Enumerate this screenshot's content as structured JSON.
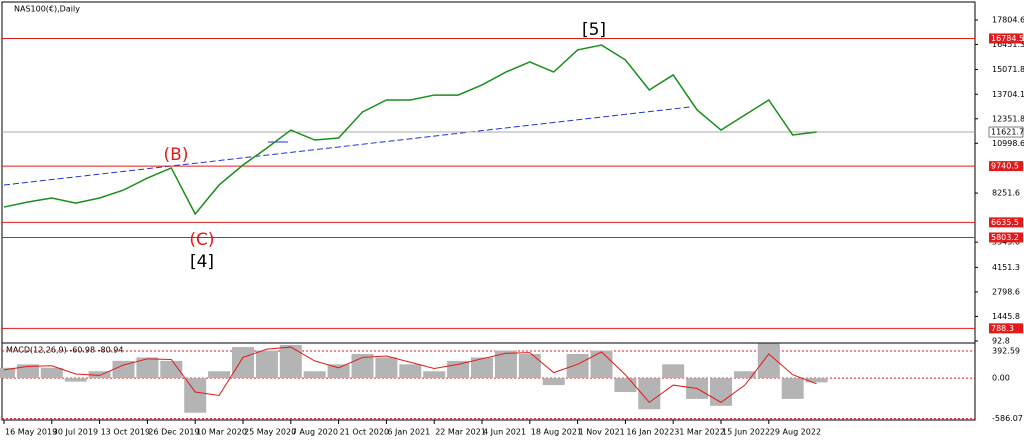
{
  "chart_data": {
    "type": "line",
    "title": "NAS100(€),Daily",
    "categories": [
      "16 May 2019",
      null,
      "30 Jul 2019",
      null,
      "13 Oct 2019",
      null,
      "26 Dec 2019",
      null,
      "10 Mar 2020",
      null,
      "25 May 2020",
      null,
      "7 Aug 2020",
      null,
      "21 Oct 2020",
      null,
      "6 Jan 2021",
      null,
      "22 Mar 2021",
      null,
      "4 Jun 2021",
      null,
      "18 Aug 2021",
      null,
      "1 Nov 2021",
      null,
      "16 Jan 2022",
      null,
      "31 Mar 2022",
      null,
      "15 Jun 2022",
      null,
      "29 Aug 2022",
      null,
      null
    ],
    "values": [
      7480,
      7760,
      7980,
      7700,
      7980,
      8420,
      9080,
      9640,
      7100,
      8700,
      9800,
      10740,
      11730,
      11180,
      11290,
      12730,
      13390,
      13390,
      13660,
      13660,
      14220,
      14930,
      15490,
      14930,
      16150,
      16420,
      15600,
      13940,
      14770,
      12840,
      11730,
      12560,
      13390,
      11460,
      11621.7
    ],
    "color": "#1a8f1a",
    "ylim": [
      -20,
      18630
    ],
    "yticks": [
      17804.6,
      16451.3,
      15071.8,
      13704.1,
      12351.8,
      10998.6,
      8251.6,
      5545.6,
      4151.3,
      2798.6,
      1445.8,
      92.8
    ],
    "levels": [
      16784.5,
      9740.5,
      6635.5,
      5803.2,
      788.3
    ],
    "level_color": "#e31a1a",
    "current_price": 11621.7,
    "annotations": [
      "(B)",
      "(C)",
      "[4]",
      "[5]"
    ],
    "macd": {
      "label": "MACD(12,26,9) -60.98 -80.94",
      "values": [
        150,
        200,
        150,
        -50,
        100,
        250,
        300,
        250,
        -500,
        100,
        450,
        400,
        480,
        100,
        200,
        350,
        300,
        200,
        100,
        250,
        300,
        400,
        350,
        -100,
        350,
        400,
        -200,
        -450,
        200,
        -300,
        -400,
        100,
        500,
        -300,
        -60.98
      ],
      "signal": [
        120,
        170,
        180,
        60,
        40,
        190,
        280,
        270,
        -200,
        -250,
        300,
        420,
        450,
        250,
        150,
        300,
        320,
        230,
        140,
        200,
        280,
        360,
        370,
        80,
        200,
        380,
        50,
        -350,
        -100,
        -150,
        -350,
        -100,
        350,
        50,
        -80.94
      ],
      "color": "#b4b4b4",
      "signal_color": "#e31a1a",
      "ylim": [
        -620,
        480
      ],
      "yticks": [
        392.59,
        {
          "value": 0,
          "label": "0.00"
        },
        -586.07
      ]
    }
  }
}
